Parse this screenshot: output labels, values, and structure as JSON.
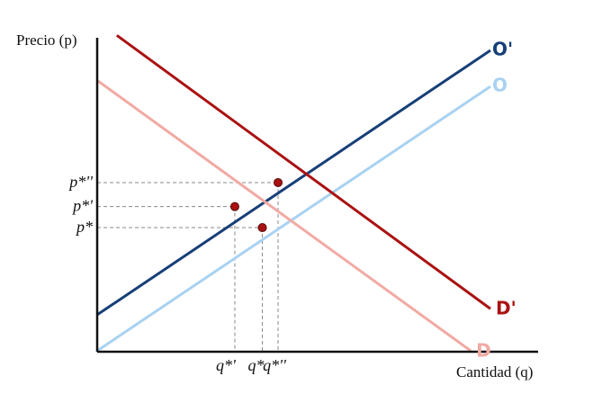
{
  "chart_data": {
    "type": "line",
    "ylabel": "Precio (p)",
    "xlabel": "Cantidad (q)",
    "grid": false,
    "series": [
      {
        "name": "O'",
        "color": "#173f78",
        "x": [
          0,
          100
        ],
        "y": [
          12,
          100
        ]
      },
      {
        "name": "O",
        "color": "#a9d2f1",
        "x": [
          0,
          100
        ],
        "y": [
          0,
          88
        ]
      },
      {
        "name": "D'",
        "color": "#aa1212",
        "x": [
          5,
          100
        ],
        "y": [
          105,
          14
        ]
      },
      {
        "name": "D",
        "color": "#f1aaa3",
        "x": [
          0,
          95
        ],
        "y": [
          90,
          0
        ]
      }
    ],
    "equilibria": [
      {
        "x_label": "q*",
        "y_label": "p*",
        "x": 42,
        "y": 41
      },
      {
        "x_label": "q*'",
        "y_label": "p*'",
        "x": 35,
        "y": 48
      },
      {
        "x_label": "q*''",
        "y_label": "p*''",
        "x": 46,
        "y": 56
      }
    ],
    "point_color": "#aa1212",
    "guide_color": "#888888",
    "xlim": [
      0,
      100
    ],
    "ylim": [
      0,
      100
    ]
  }
}
